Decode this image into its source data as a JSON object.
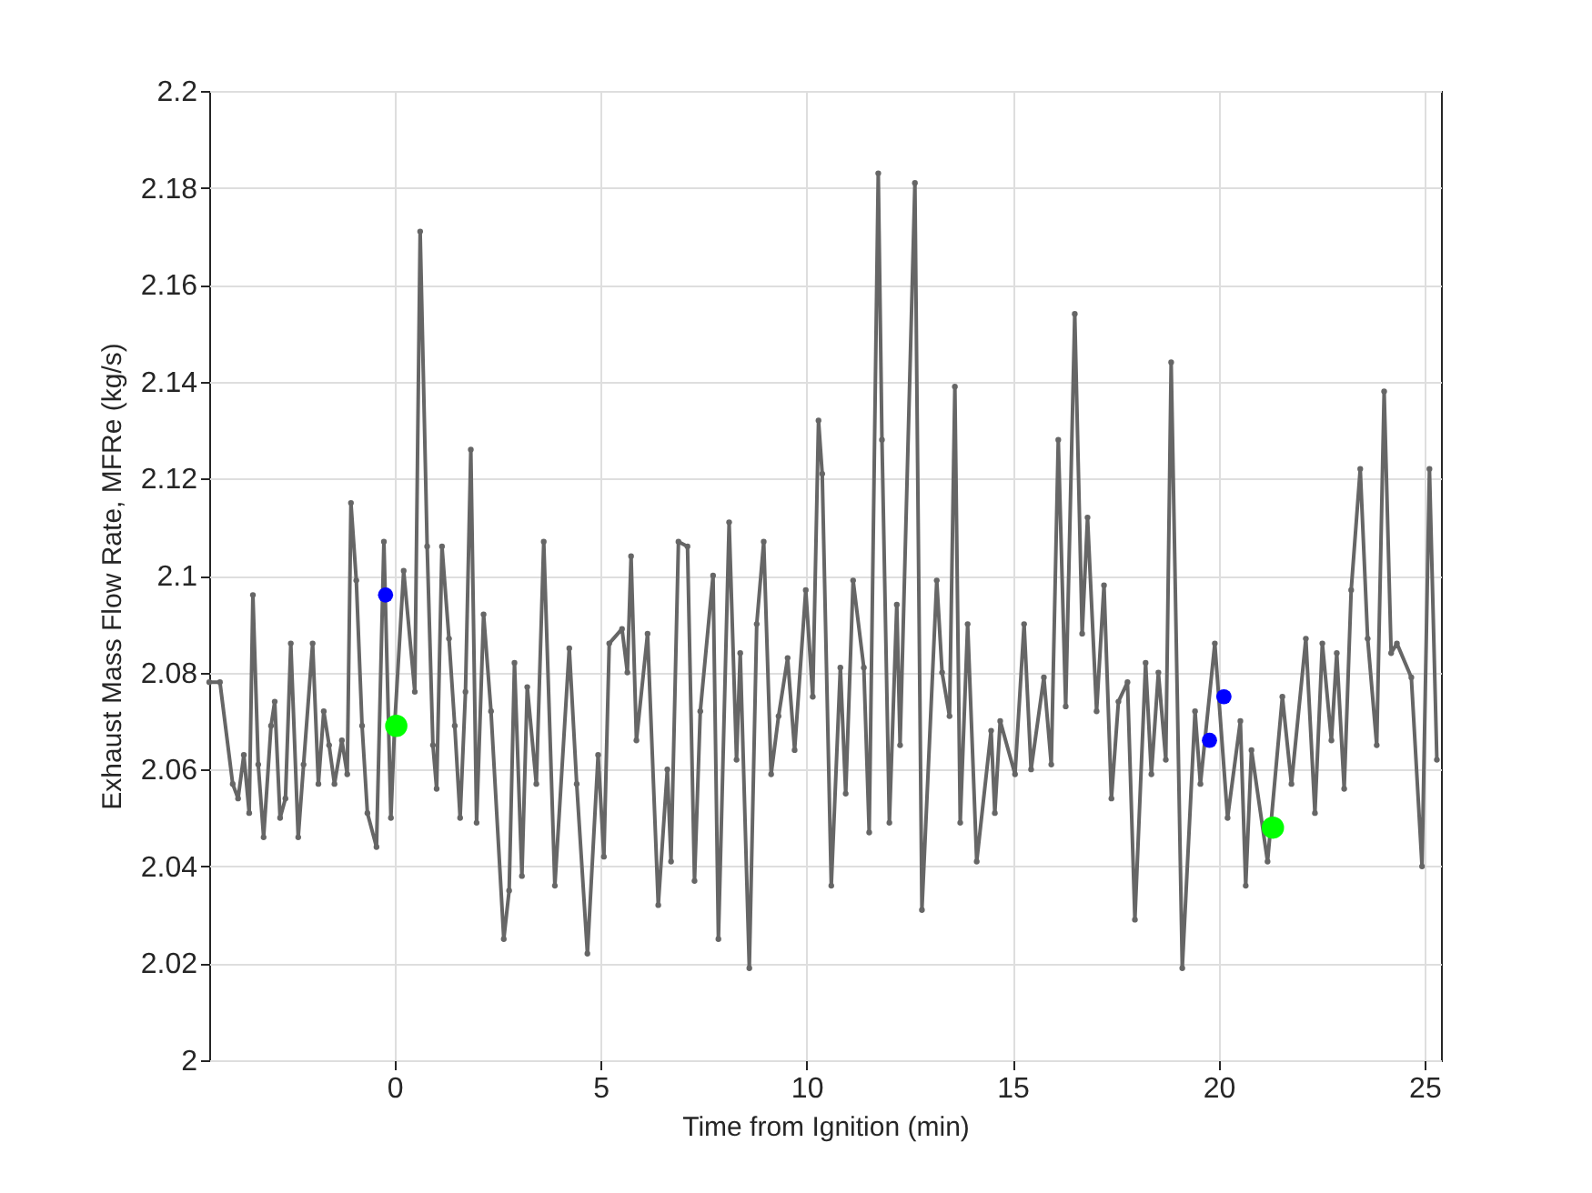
{
  "chart_data": {
    "type": "line",
    "xlabel": "Time from Ignition (min)",
    "ylabel": "Exhaust Mass Flow Rate, MFRe (kg/s)",
    "xlim": [
      -4.5,
      25.4
    ],
    "xticks": [
      0,
      5,
      10,
      15,
      20,
      25
    ],
    "ylim": [
      2,
      2.2
    ],
    "yticks": [
      2,
      2.02,
      2.04,
      2.06,
      2.08,
      2.1,
      2.12,
      2.14,
      2.16,
      2.18,
      2.2
    ],
    "grid": true,
    "marker": "circle",
    "line_style": "solid",
    "series": [
      {
        "color": "#666666",
        "x": [
          -4.5,
          -4.24,
          -3.93,
          -3.8,
          -3.66,
          -3.53,
          -3.44,
          -3.31,
          -3.18,
          -3.0,
          -2.91,
          -2.78,
          -2.65,
          -2.52,
          -2.34,
          -2.21,
          -1.99,
          -1.85,
          -1.72,
          -1.59,
          -1.46,
          -1.28,
          -1.15,
          -1.06,
          -0.93,
          -0.79,
          -0.66,
          -0.44,
          -0.26,
          -0.09,
          0,
          0.22,
          0.49,
          0.62,
          0.79,
          0.93,
          1.02,
          1.15,
          1.32,
          1.46,
          1.59,
          1.72,
          1.85,
          1.99,
          2.16,
          2.34,
          2.65,
          2.78,
          2.91,
          3.09,
          3.22,
          3.44,
          3.62,
          3.89,
          4.24,
          4.42,
          4.68,
          4.94,
          5.08,
          5.21,
          5.52,
          5.65,
          5.74,
          5.87,
          6.14,
          6.4,
          6.62,
          6.71,
          6.89,
          7.11,
          7.28,
          7.42,
          7.73,
          7.86,
          8.12,
          8.3,
          8.39,
          8.61,
          8.79,
          8.96,
          9.14,
          9.32,
          9.54,
          9.71,
          9.98,
          10.15,
          10.29,
          10.38,
          10.6,
          10.82,
          10.95,
          11.13,
          11.39,
          11.52,
          11.74,
          11.83,
          12.01,
          12.19,
          12.27,
          12.63,
          12.8,
          13.16,
          13.29,
          13.47,
          13.6,
          13.73,
          13.91,
          14.13,
          14.48,
          14.57,
          14.7,
          15.06,
          15.28,
          15.45,
          15.76,
          15.94,
          16.11,
          16.29,
          16.51,
          16.69,
          16.82,
          17.04,
          17.22,
          17.4,
          17.57,
          17.79,
          17.97,
          18.23,
          18.37,
          18.54,
          18.72,
          18.85,
          19.12,
          19.43,
          19.56,
          19.91,
          20.22,
          20.53,
          20.66,
          20.8,
          21.19,
          21.55,
          21.77,
          22.12,
          22.34,
          22.52,
          22.74,
          22.87,
          23.05,
          23.22,
          23.44,
          23.62,
          23.84,
          24.02,
          24.19,
          24.33,
          24.68,
          24.94,
          25.12,
          25.3
        ],
        "values": [
          2.078,
          2.078,
          2.057,
          2.054,
          2.063,
          2.051,
          2.096,
          2.061,
          2.046,
          2.069,
          2.074,
          2.05,
          2.054,
          2.086,
          2.046,
          2.061,
          2.086,
          2.057,
          2.072,
          2.065,
          2.057,
          2.066,
          2.059,
          2.115,
          2.099,
          2.069,
          2.051,
          2.044,
          2.107,
          2.05,
          2.069,
          2.101,
          2.076,
          2.171,
          2.106,
          2.065,
          2.056,
          2.106,
          2.087,
          2.069,
          2.05,
          2.076,
          2.126,
          2.049,
          2.092,
          2.072,
          2.025,
          2.035,
          2.082,
          2.038,
          2.077,
          2.057,
          2.107,
          2.036,
          2.085,
          2.057,
          2.022,
          2.063,
          2.042,
          2.086,
          2.089,
          2.08,
          2.104,
          2.066,
          2.088,
          2.032,
          2.06,
          2.041,
          2.107,
          2.106,
          2.037,
          2.072,
          2.1,
          2.025,
          2.111,
          2.062,
          2.084,
          2.019,
          2.09,
          2.107,
          2.059,
          2.071,
          2.083,
          2.064,
          2.097,
          2.075,
          2.132,
          2.121,
          2.036,
          2.081,
          2.055,
          2.099,
          2.081,
          2.047,
          2.183,
          2.128,
          2.049,
          2.094,
          2.065,
          2.181,
          2.031,
          2.099,
          2.08,
          2.071,
          2.139,
          2.049,
          2.09,
          2.041,
          2.068,
          2.051,
          2.07,
          2.059,
          2.09,
          2.06,
          2.079,
          2.061,
          2.128,
          2.073,
          2.154,
          2.088,
          2.112,
          2.072,
          2.098,
          2.054,
          2.074,
          2.078,
          2.029,
          2.082,
          2.059,
          2.08,
          2.062,
          2.144,
          2.019,
          2.072,
          2.057,
          2.086,
          2.05,
          2.07,
          2.036,
          2.064,
          2.041,
          2.075,
          2.057,
          2.087,
          2.051,
          2.086,
          2.066,
          2.084,
          2.056,
          2.097,
          2.122,
          2.087,
          2.065,
          2.138,
          2.084,
          2.086,
          2.079,
          2.04,
          2.122,
          2.062
        ]
      },
      {
        "type": "scatter",
        "color": "#0000ff",
        "x": [
          -0.22,
          19.78,
          20.13
        ],
        "values": [
          2.096,
          2.066,
          2.075
        ]
      },
      {
        "type": "scatter",
        "color": "#00ff00",
        "x": [
          0.04,
          21.32
        ],
        "values": [
          2.069,
          2.048
        ]
      }
    ]
  }
}
